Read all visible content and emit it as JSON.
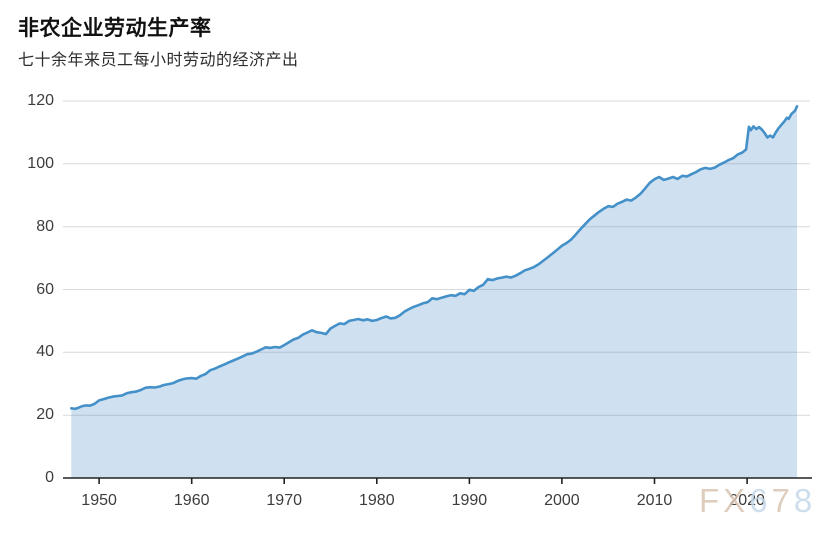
{
  "header": {
    "title": "非农企业劳动生产率",
    "subtitle": "七十余年来员工每小时劳动的经济产出"
  },
  "watermark": {
    "text": "FX678",
    "letter_colors": [
      "#d8c4b0",
      "#d8c4b0",
      "#c4d7e9",
      "#d8c4b0",
      "#c4d7e9"
    ]
  },
  "chart_data": {
    "type": "area",
    "title": "非农企业劳动生产率",
    "subtitle": "七十余年来员工每小时劳动的经济产出",
    "xlabel": "",
    "ylabel": "",
    "x_ticks": [
      1950,
      1960,
      1970,
      1980,
      1990,
      2000,
      2010,
      2020
    ],
    "y_ticks": [
      0,
      20,
      40,
      60,
      80,
      100,
      120
    ],
    "xlim": [
      1946.1,
      2026.8
    ],
    "ylim": [
      0,
      120
    ],
    "grid": "horizontal-only",
    "legend": "none",
    "line_color": "#4490c8",
    "fill_color": "rgba(159,193,227,0.5)",
    "axis_color": "#222222",
    "gridline_color": "rgba(110,118,128,0.28)",
    "series": [
      {
        "points": [
          [
            1947.0,
            22.2
          ],
          [
            1947.4,
            22.0
          ],
          [
            1947.8,
            22.4
          ],
          [
            1948.2,
            22.9
          ],
          [
            1948.6,
            23.1
          ],
          [
            1949.0,
            23.0
          ],
          [
            1949.5,
            23.6
          ],
          [
            1950.0,
            24.7
          ],
          [
            1950.5,
            25.1
          ],
          [
            1951.0,
            25.6
          ],
          [
            1951.5,
            25.9
          ],
          [
            1952.0,
            26.1
          ],
          [
            1952.5,
            26.3
          ],
          [
            1953.0,
            27.0
          ],
          [
            1953.5,
            27.3
          ],
          [
            1954.0,
            27.5
          ],
          [
            1954.5,
            28.0
          ],
          [
            1955.0,
            28.7
          ],
          [
            1955.5,
            28.9
          ],
          [
            1956.0,
            28.8
          ],
          [
            1956.5,
            29.1
          ],
          [
            1957.0,
            29.6
          ],
          [
            1957.5,
            29.9
          ],
          [
            1958.0,
            30.2
          ],
          [
            1958.5,
            30.9
          ],
          [
            1959.0,
            31.4
          ],
          [
            1959.5,
            31.7
          ],
          [
            1960.0,
            31.8
          ],
          [
            1960.5,
            31.6
          ],
          [
            1961.0,
            32.5
          ],
          [
            1961.5,
            33.1
          ],
          [
            1962.0,
            34.3
          ],
          [
            1962.5,
            34.8
          ],
          [
            1963.0,
            35.5
          ],
          [
            1963.5,
            36.1
          ],
          [
            1964.0,
            36.8
          ],
          [
            1964.5,
            37.4
          ],
          [
            1965.0,
            38.0
          ],
          [
            1965.5,
            38.7
          ],
          [
            1966.0,
            39.4
          ],
          [
            1966.5,
            39.6
          ],
          [
            1967.0,
            40.2
          ],
          [
            1967.5,
            40.9
          ],
          [
            1968.0,
            41.6
          ],
          [
            1968.5,
            41.4
          ],
          [
            1969.0,
            41.7
          ],
          [
            1969.5,
            41.5
          ],
          [
            1970.0,
            42.3
          ],
          [
            1970.5,
            43.2
          ],
          [
            1971.0,
            44.1
          ],
          [
            1971.5,
            44.6
          ],
          [
            1972.0,
            45.6
          ],
          [
            1972.5,
            46.3
          ],
          [
            1973.0,
            47.0
          ],
          [
            1973.5,
            46.4
          ],
          [
            1974.0,
            46.2
          ],
          [
            1974.5,
            45.8
          ],
          [
            1975.0,
            47.6
          ],
          [
            1975.5,
            48.4
          ],
          [
            1976.0,
            49.2
          ],
          [
            1976.5,
            49.0
          ],
          [
            1977.0,
            50.0
          ],
          [
            1977.5,
            50.3
          ],
          [
            1978.0,
            50.6
          ],
          [
            1978.5,
            50.2
          ],
          [
            1979.0,
            50.5
          ],
          [
            1979.5,
            50.0
          ],
          [
            1980.0,
            50.3
          ],
          [
            1980.5,
            50.9
          ],
          [
            1981.0,
            51.4
          ],
          [
            1981.5,
            50.8
          ],
          [
            1982.0,
            51.0
          ],
          [
            1982.5,
            51.8
          ],
          [
            1983.0,
            53.0
          ],
          [
            1983.5,
            53.8
          ],
          [
            1984.0,
            54.5
          ],
          [
            1984.5,
            55.0
          ],
          [
            1985.0,
            55.6
          ],
          [
            1985.5,
            56.0
          ],
          [
            1986.0,
            57.2
          ],
          [
            1986.5,
            56.9
          ],
          [
            1987.0,
            57.4
          ],
          [
            1987.5,
            57.8
          ],
          [
            1988.0,
            58.2
          ],
          [
            1988.5,
            58.0
          ],
          [
            1989.0,
            58.8
          ],
          [
            1989.5,
            58.5
          ],
          [
            1990.0,
            59.9
          ],
          [
            1990.5,
            59.6
          ],
          [
            1991.0,
            60.8
          ],
          [
            1991.5,
            61.5
          ],
          [
            1992.0,
            63.3
          ],
          [
            1992.5,
            63.0
          ],
          [
            1993.0,
            63.5
          ],
          [
            1993.5,
            63.8
          ],
          [
            1994.0,
            64.1
          ],
          [
            1994.5,
            63.8
          ],
          [
            1995.0,
            64.4
          ],
          [
            1995.5,
            65.2
          ],
          [
            1996.0,
            66.1
          ],
          [
            1996.5,
            66.6
          ],
          [
            1997.0,
            67.2
          ],
          [
            1997.5,
            68.1
          ],
          [
            1998.0,
            69.2
          ],
          [
            1998.5,
            70.3
          ],
          [
            1999.0,
            71.5
          ],
          [
            1999.5,
            72.7
          ],
          [
            2000.0,
            73.9
          ],
          [
            2000.5,
            74.8
          ],
          [
            2001.0,
            75.9
          ],
          [
            2001.5,
            77.5
          ],
          [
            2002.0,
            79.2
          ],
          [
            2002.5,
            80.8
          ],
          [
            2003.0,
            82.3
          ],
          [
            2003.5,
            83.5
          ],
          [
            2004.0,
            84.7
          ],
          [
            2004.5,
            85.7
          ],
          [
            2005.0,
            86.5
          ],
          [
            2005.5,
            86.3
          ],
          [
            2006.0,
            87.3
          ],
          [
            2006.5,
            87.9
          ],
          [
            2007.0,
            88.6
          ],
          [
            2007.5,
            88.3
          ],
          [
            2008.0,
            89.3
          ],
          [
            2008.5,
            90.5
          ],
          [
            2009.0,
            92.2
          ],
          [
            2009.5,
            94.0
          ],
          [
            2010.0,
            95.1
          ],
          [
            2010.5,
            95.8
          ],
          [
            2011.0,
            94.9
          ],
          [
            2011.5,
            95.3
          ],
          [
            2012.0,
            95.8
          ],
          [
            2012.5,
            95.2
          ],
          [
            2013.0,
            96.2
          ],
          [
            2013.5,
            96.0
          ],
          [
            2014.0,
            96.7
          ],
          [
            2014.5,
            97.4
          ],
          [
            2015.0,
            98.3
          ],
          [
            2015.5,
            98.7
          ],
          [
            2016.0,
            98.4
          ],
          [
            2016.5,
            98.8
          ],
          [
            2017.0,
            99.7
          ],
          [
            2017.5,
            100.4
          ],
          [
            2018.0,
            101.2
          ],
          [
            2018.5,
            101.8
          ],
          [
            2019.0,
            103.0
          ],
          [
            2019.5,
            103.6
          ],
          [
            2019.9,
            104.6
          ],
          [
            2020.2,
            111.8
          ],
          [
            2020.4,
            110.7
          ],
          [
            2020.7,
            111.9
          ],
          [
            2021.0,
            111.1
          ],
          [
            2021.3,
            111.7
          ],
          [
            2021.6,
            110.9
          ],
          [
            2021.9,
            109.8
          ],
          [
            2022.2,
            108.4
          ],
          [
            2022.5,
            109.0
          ],
          [
            2022.8,
            108.4
          ],
          [
            2023.1,
            110.0
          ],
          [
            2023.4,
            111.3
          ],
          [
            2023.7,
            112.4
          ],
          [
            2024.0,
            113.4
          ],
          [
            2024.3,
            114.7
          ],
          [
            2024.5,
            114.3
          ],
          [
            2024.8,
            115.9
          ],
          [
            2025.0,
            116.4
          ],
          [
            2025.2,
            117.0
          ],
          [
            2025.4,
            118.3
          ]
        ]
      }
    ]
  }
}
